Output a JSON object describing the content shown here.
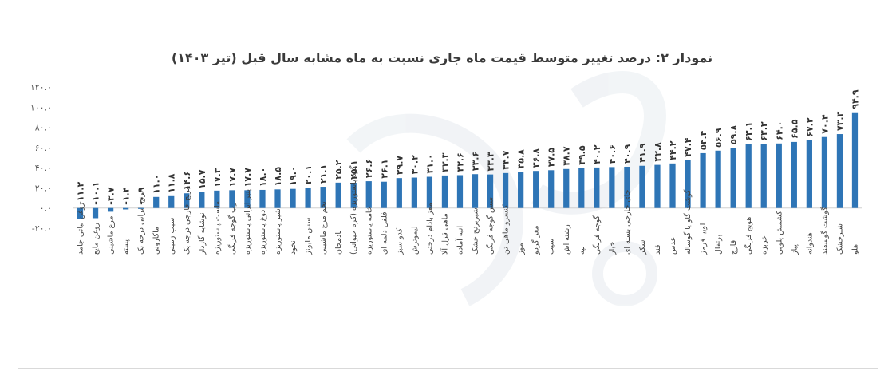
{
  "chart_data": {
    "type": "bar",
    "title": "نمودار ۲: درصد تغییر متوسط قیمت ماه جاری نسبت به ماه مشابه سال قبل (تیر ۱۴۰۳)",
    "ylim": [
      -20,
      120
    ],
    "yticks": [
      -20,
      0,
      20,
      40,
      60,
      80,
      100,
      120
    ],
    "ytick_labels": [
      "-۲۰.۰",
      "۰.۰",
      "۲۰.۰",
      "۴۰.۰",
      "۶۰.۰",
      "۸۰.۰",
      "۱۰۰.۰",
      "۱۲۰.۰"
    ],
    "bar_color": "#2e75b6",
    "direction": "rtl",
    "categories": [
      "هلو",
      "شیرخشک",
      "گوشت گوسفند",
      "هندوانه",
      "پیاز",
      "کشمش پلویی",
      "خربزه",
      "هویج فرنگی",
      "قارچ",
      "پرتقال",
      "لوبیا قرمز",
      "گوشت گاو یا گوساله",
      "عدس",
      "قند",
      "شکر",
      "چای خارجی بسته ای",
      "خیار",
      "گوجه فرنگی",
      "لپه",
      "رشته آش",
      "سیب",
      "مغز گردو",
      "موز",
      "کنسرو ماهی تن",
      "سس گوجه فرنگی",
      "شیربرنج خشک",
      "انبه آماده",
      "ماهی قزل آلا",
      "مغز بادام درختی",
      "لیموترش",
      "کدو سبز",
      "فلفل دلمه ای",
      "خامه پاستوریزه",
      "گره پاستوریزه (کره حیوانی)",
      "بادمجان",
      "تخم مرغ ماشینی",
      "سس مایونز",
      "نخود",
      "شیر پاستوریزه",
      "دوغ پاستوریزه",
      "پنیر ایرانی پاستوریزه",
      "رب گوجه فرنگی",
      "ماست پاستوریزه",
      "نوشابه گازدار",
      "برنج خارجی درجه یک",
      "سیب زمینی",
      "ماکارونی",
      "برنج ایرانی درجه یک",
      "پسته",
      "مرغ ماشینی",
      "روغن مایع",
      "روغن نباتی جامد"
    ],
    "values": [
      94.9,
      73.3,
      70.4,
      67.2,
      65.5,
      64.0,
      63.3,
      63.1,
      59.8,
      56.9,
      54.4,
      47.4,
      44.2,
      42.8,
      41.9,
      40.9,
      40.6,
      40.2,
      39.5,
      38.7,
      37.5,
      36.8,
      35.8,
      34.7,
      33.3,
      33.6,
      32.6,
      32.3,
      31.0,
      30.2,
      29.7,
      26.1,
      26.6,
      25.1,
      25.2,
      21.1,
      20.1,
      19.0,
      18.5,
      18.0,
      17.7,
      17.7,
      17.3,
      15.7,
      14.6,
      11.8,
      11.0,
      -0.9,
      -1.4,
      -3.7,
      -10.1,
      -11.2
    ],
    "value_labels": [
      "۹۴.۹",
      "۷۳.۳",
      "۷۰.۴",
      "۶۷.۲",
      "۶۵.۵",
      "۶۴.۰",
      "۶۳.۳",
      "۶۳.۱",
      "۵۹.۸",
      "۵۶.۹",
      "۵۴.۴",
      "۴۷.۴",
      "۴۴.۲",
      "۴۲.۸",
      "۴۱.۹",
      "۴۰.۹",
      "۴۰.۶",
      "۴۰.۲",
      "۳۹.۵",
      "۳۸.۷",
      "۳۷.۵",
      "۳۶.۸",
      "۳۵.۸",
      "۳۴.۷",
      "۳۳.۳",
      "۳۳.۶",
      "۳۲.۶",
      "۳۲.۳",
      "۳۱.۰",
      "۳۰.۲",
      "۲۹.۷",
      "۲۶.۱",
      "۲۶.۶",
      "۲۵.۱",
      "۲۵.۲",
      "۲۱.۱",
      "۲۰.۱",
      "۱۹.۰",
      "۱۸.۵",
      "۱۸.۰",
      "۱۷.۷",
      "۱۷.۷",
      "۱۷.۳",
      "۱۵.۷",
      "۱۴.۶",
      "۱۱.۸",
      "۱۱.۰",
      "-۰.۹",
      "-۱.۴",
      "-۳.۷",
      "-۱۰.۱",
      "-۱۱.۲"
    ],
    "grid": false,
    "legend": "none"
  }
}
